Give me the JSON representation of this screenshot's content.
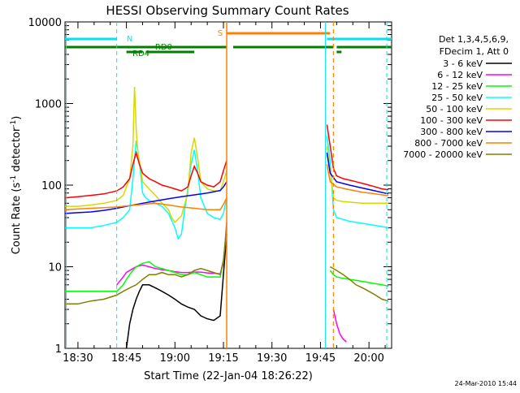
{
  "chart_data": {
    "type": "line",
    "title": "HESSI Observing Summary Count Rates",
    "xlabel": "Start Time (22-Jan-04 18:26:22)",
    "ylabel_main": "Count Rate (s",
    "ylabel_sup1": "-1",
    "ylabel_mid": " detector",
    "ylabel_sup2": "-1",
    "ylabel_end": ")",
    "yscale": "log",
    "ylim": [
      1,
      10000
    ],
    "xlim_min": [
      -4,
      97
    ],
    "x_ticks": [
      {
        "min": 0,
        "label": "18:30"
      },
      {
        "min": 15,
        "label": "18:45"
      },
      {
        "min": 30,
        "label": "19:00"
      },
      {
        "min": 45,
        "label": "19:15"
      },
      {
        "min": 60,
        "label": "19:30"
      },
      {
        "min": 75,
        "label": "19:45"
      },
      {
        "min": 90,
        "label": "20:00"
      }
    ],
    "y_ticks": [
      {
        "value": 1,
        "label": "1"
      },
      {
        "value": 10,
        "label": "10"
      },
      {
        "value": 100,
        "label": "100"
      },
      {
        "value": 1000,
        "label": "1000"
      },
      {
        "value": 10000,
        "label": "10000"
      }
    ],
    "legend": {
      "placement": "right",
      "header": [
        "Det 1,3,4,5,6,9,",
        "FDecim 1, Att 0"
      ]
    },
    "series": [
      {
        "name": "3 - 6 keV",
        "color": "#000000",
        "x": [
          15,
          16,
          17,
          18,
          19,
          20,
          22,
          24,
          26,
          28,
          30,
          32,
          34,
          36,
          38,
          40,
          42,
          44,
          45,
          46
        ],
        "y": [
          1,
          2,
          3,
          4,
          5,
          6,
          6,
          5.5,
          5,
          4.5,
          4,
          3.5,
          3.2,
          3,
          2.5,
          2.3,
          2.2,
          2.5,
          8,
          25
        ]
      },
      {
        "name": "6 - 12 keV",
        "color": "#ff00ff",
        "x": [
          12,
          14,
          15,
          16,
          17,
          18,
          20,
          22,
          24,
          26,
          28,
          30,
          32,
          34,
          36,
          38,
          40,
          42,
          44,
          45,
          46,
          79,
          80,
          81,
          82,
          83
        ],
        "y": [
          6,
          7.5,
          8.5,
          9,
          9.5,
          10,
          10.5,
          10,
          9.5,
          9.2,
          9,
          8.7,
          8.5,
          8.5,
          8.6,
          8.6,
          8.4,
          8.3,
          8.2,
          11,
          35,
          3,
          2,
          1.5,
          1.3,
          1.2
        ]
      },
      {
        "name": "12 - 25 keV",
        "color": "#00ff00",
        "x": [
          -4,
          0,
          4,
          8,
          12,
          14,
          15,
          16,
          17,
          18,
          20,
          22,
          24,
          26,
          28,
          30,
          32,
          34,
          36,
          38,
          40,
          42,
          44,
          45,
          46,
          78,
          79,
          80,
          82,
          84,
          86,
          88,
          90,
          92,
          94,
          96
        ],
        "y": [
          5,
          5,
          5,
          5,
          5,
          6,
          7,
          8,
          9,
          10,
          11,
          11.5,
          10,
          9.5,
          9,
          8.5,
          8,
          8,
          8.5,
          8,
          7.5,
          7.5,
          7.5,
          12,
          30,
          9,
          8,
          7.5,
          7.2,
          7,
          6.8,
          6.6,
          6.4,
          6.2,
          6,
          5.8
        ]
      },
      {
        "name": "25 - 50 keV",
        "color": "#00ffff",
        "x": [
          -4,
          0,
          4,
          8,
          12,
          14,
          16,
          17,
          18,
          19,
          20,
          21,
          22,
          24,
          26,
          28,
          30,
          31,
          32,
          33,
          34,
          35,
          36,
          37,
          38,
          40,
          42,
          44,
          45,
          46,
          77,
          78,
          79,
          80,
          82,
          84,
          86,
          88,
          90,
          92,
          94,
          96
        ],
        "y": [
          30,
          30,
          30,
          32,
          35,
          40,
          50,
          120,
          350,
          200,
          80,
          70,
          65,
          60,
          55,
          45,
          30,
          22,
          25,
          50,
          90,
          180,
          270,
          150,
          70,
          45,
          40,
          38,
          45,
          70,
          400,
          200,
          50,
          40,
          38,
          36,
          35,
          34,
          33,
          32,
          31,
          30
        ]
      },
      {
        "name": "50 - 100 keV",
        "color": "#d8d800",
        "x": [
          -4,
          0,
          4,
          8,
          12,
          14,
          16,
          17,
          17.5,
          18,
          18.5,
          19,
          20,
          22,
          24,
          26,
          28,
          29,
          30,
          32,
          34,
          35,
          36,
          37,
          38,
          40,
          42,
          44,
          45,
          46,
          77,
          78,
          79,
          80,
          82,
          84,
          86,
          88,
          90,
          92,
          94,
          96
        ],
        "y": [
          55,
          55,
          57,
          60,
          65,
          75,
          120,
          300,
          1600,
          500,
          250,
          200,
          110,
          90,
          75,
          60,
          50,
          40,
          35,
          42,
          80,
          250,
          380,
          220,
          110,
          90,
          85,
          85,
          110,
          150,
          300,
          150,
          70,
          65,
          63,
          62,
          61,
          60,
          60,
          60,
          60,
          60
        ]
      },
      {
        "name": "100 - 300 keV",
        "color": "#ff0000",
        "x": [
          -4,
          0,
          4,
          8,
          12,
          14,
          16,
          17,
          18,
          19,
          20,
          22,
          24,
          26,
          28,
          30,
          32,
          34,
          35,
          36,
          37,
          38,
          40,
          42,
          44,
          45,
          46,
          77,
          78,
          79,
          80,
          82,
          84,
          86,
          88,
          90,
          92,
          94,
          96
        ],
        "y": [
          70,
          72,
          75,
          78,
          85,
          95,
          120,
          180,
          250,
          180,
          140,
          120,
          110,
          100,
          95,
          90,
          85,
          95,
          130,
          170,
          140,
          110,
          100,
          95,
          110,
          150,
          200,
          550,
          300,
          160,
          130,
          120,
          115,
          110,
          105,
          100,
          95,
          90,
          88
        ]
      },
      {
        "name": "300 - 800 keV",
        "color": "#0000ff",
        "x": [
          -4,
          0,
          4,
          8,
          12,
          16,
          20,
          24,
          28,
          32,
          36,
          40,
          44,
          45,
          46,
          77,
          78,
          80,
          84,
          88,
          92,
          96
        ],
        "y": [
          45,
          46,
          47,
          49,
          52,
          56,
          60,
          64,
          68,
          72,
          76,
          80,
          86,
          95,
          110,
          250,
          140,
          110,
          100,
          92,
          85,
          78
        ]
      },
      {
        "name": "800 - 7000 keV",
        "color": "#ff8000",
        "x": [
          -4,
          0,
          4,
          8,
          12,
          16,
          20,
          24,
          28,
          32,
          36,
          40,
          44,
          45,
          46,
          77,
          78,
          80,
          84,
          88,
          92,
          96
        ],
        "y": [
          50,
          51,
          52,
          53,
          54,
          56,
          58,
          60,
          57,
          54,
          52,
          50,
          50,
          58,
          70,
          180,
          110,
          95,
          88,
          82,
          78,
          74
        ]
      },
      {
        "name": "7000 - 20000 keV",
        "color": "#808000",
        "x": [
          -4,
          0,
          4,
          8,
          12,
          14,
          16,
          18,
          20,
          22,
          24,
          26,
          28,
          30,
          32,
          34,
          36,
          38,
          40,
          42,
          44,
          45,
          46,
          78,
          80,
          82,
          84,
          86,
          88,
          90,
          92,
          94,
          96
        ],
        "y": [
          3.5,
          3.5,
          3.8,
          4,
          4.5,
          5,
          5.5,
          6,
          7,
          8,
          8,
          8.5,
          8,
          8,
          7.5,
          8,
          9,
          9.5,
          9,
          8.5,
          8,
          12,
          28,
          10,
          9,
          8,
          7,
          6,
          5.5,
          5,
          4.5,
          4,
          3.8
        ]
      }
    ],
    "annotations": {
      "attenuator_label": "S",
      "night_label": "N",
      "decimation_labels": [
        "RD0",
        "RD4"
      ],
      "footer_date": "24-Mar-2010 15:44"
    }
  }
}
